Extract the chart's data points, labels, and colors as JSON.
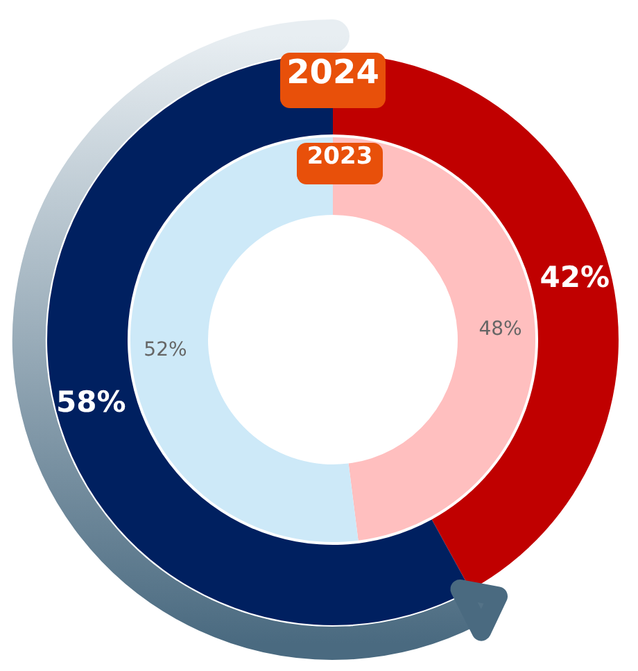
{
  "chart_data": {
    "type": "donut",
    "categories": [
      null,
      null
    ],
    "data_labels": true,
    "series": [
      {
        "name": "2023",
        "values": [
          48,
          52
        ],
        "colors": [
          "#ffbfbf",
          "#cde9f8"
        ],
        "value_labels": [
          "48%",
          "52%"
        ]
      },
      {
        "name": "2024",
        "values": [
          42,
          58
        ],
        "colors": [
          "#c00000",
          "#002060"
        ],
        "value_labels": [
          "42%",
          "58%"
        ]
      }
    ]
  }
}
